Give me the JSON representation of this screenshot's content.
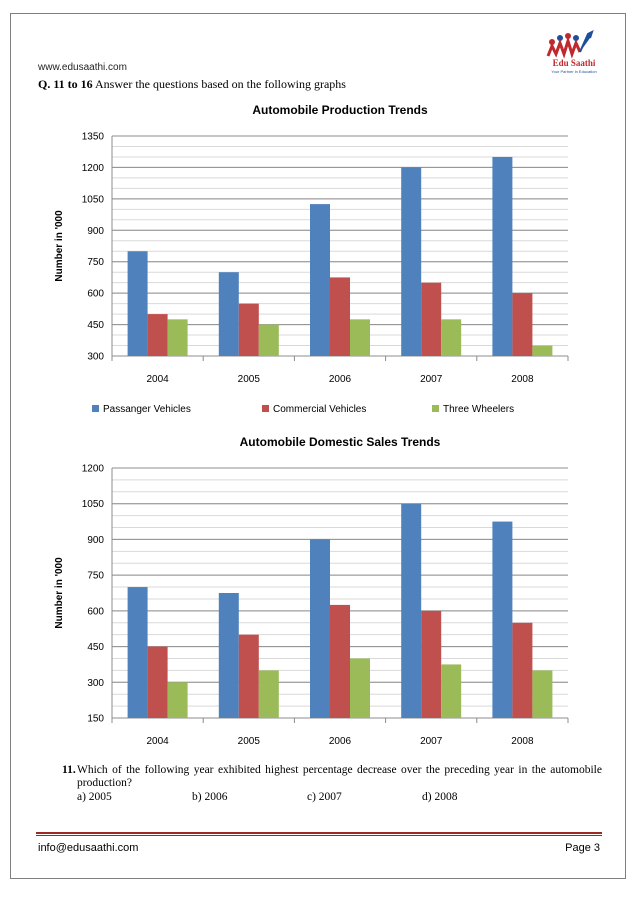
{
  "header": {
    "site_url": "www.edusaathi.com",
    "logo_text": "Edu Saathi",
    "logo_tagline": "Your Partner in Education",
    "question_range": "Q. 11 to 16",
    "instruction": "Answer the questions based on the following graphs"
  },
  "chart_data": [
    {
      "type": "bar",
      "title": "Automobile Production Trends",
      "xlabel": "",
      "ylabel": "Number in '000",
      "categories": [
        "2004",
        "2005",
        "2006",
        "2007",
        "2008"
      ],
      "series": [
        {
          "name": "Passanger Vehicles",
          "values": [
            800,
            700,
            1025,
            1200,
            1250
          ],
          "color": "#4f81bd"
        },
        {
          "name": "Commercial Vehicles",
          "values": [
            500,
            550,
            675,
            650,
            600
          ],
          "color": "#c0504d"
        },
        {
          "name": "Three Wheelers",
          "values": [
            475,
            450,
            475,
            475,
            350
          ],
          "color": "#9bbb59"
        }
      ],
      "ylim": [
        300,
        1350
      ],
      "yticks": [
        300,
        450,
        600,
        750,
        900,
        1050,
        1200,
        1350
      ],
      "minor_grid_step": 50,
      "grid": true,
      "legend": "bottom"
    },
    {
      "type": "bar",
      "title": "Automobile Domestic Sales Trends",
      "xlabel": "",
      "ylabel": "Number in '000",
      "categories": [
        "2004",
        "2005",
        "2006",
        "2007",
        "2008"
      ],
      "series": [
        {
          "values": [
            700,
            675,
            900,
            1050,
            975
          ],
          "color": "#4f81bd"
        },
        {
          "values": [
            450,
            500,
            625,
            600,
            550
          ],
          "color": "#c0504d"
        },
        {
          "values": [
            300,
            350,
            400,
            375,
            350
          ],
          "color": "#9bbb59"
        }
      ],
      "ylim": [
        150,
        1200
      ],
      "yticks": [
        150,
        300,
        450,
        600,
        750,
        900,
        1050,
        1200
      ],
      "minor_grid_step": 50,
      "grid": true,
      "legend": "none"
    }
  ],
  "question": {
    "number": "11.",
    "text": "Which of the following year exhibited highest percentage decrease over the preceding year in the automobile production?",
    "options": [
      "a) 2005",
      "b) 2006",
      "c) 2007",
      "d) 2008"
    ]
  },
  "footer": {
    "email": "info@edusaathi.com",
    "page": "Page 3"
  }
}
